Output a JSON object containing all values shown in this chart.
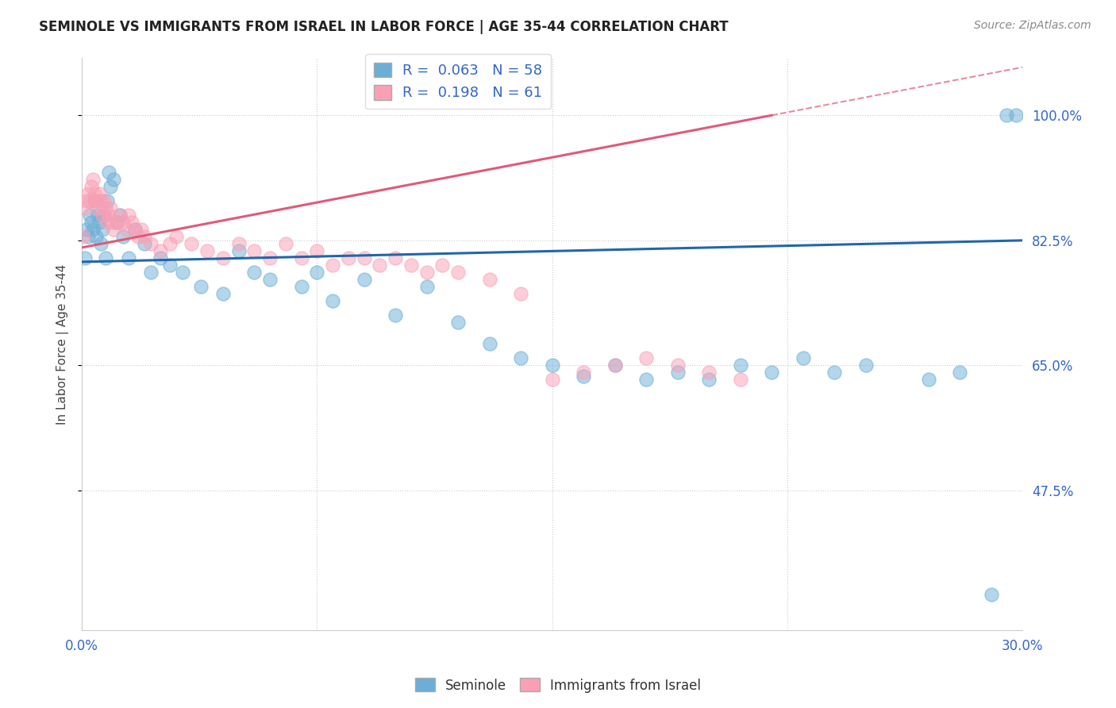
{
  "title": "SEMINOLE VS IMMIGRANTS FROM ISRAEL IN LABOR FORCE | AGE 35-44 CORRELATION CHART",
  "source": "Source: ZipAtlas.com",
  "ylabel": "In Labor Force | Age 35-44",
  "xlim": [
    0.0,
    30.0
  ],
  "ylim": [
    28.0,
    108.0
  ],
  "yticks": [
    47.5,
    65.0,
    82.5,
    100.0
  ],
  "xticks": [
    0.0,
    7.5,
    15.0,
    22.5,
    30.0
  ],
  "xtick_labels": [
    "0.0%",
    "",
    "",
    "",
    "30.0%"
  ],
  "ytick_labels": [
    "47.5%",
    "65.0%",
    "82.5%",
    "100.0%"
  ],
  "seminole_R": 0.063,
  "seminole_N": 58,
  "israel_R": 0.198,
  "israel_N": 61,
  "blue_color": "#6baed6",
  "pink_color": "#fa9fb5",
  "blue_line_color": "#2166ac",
  "pink_line_color": "#e05a78",
  "legend_label_blue": "Seminole",
  "legend_label_pink": "Immigrants from Israel",
  "seminole_x": [
    0.1,
    0.15,
    0.2,
    0.25,
    0.3,
    0.35,
    0.4,
    0.45,
    0.5,
    0.55,
    0.6,
    0.65,
    0.7,
    0.75,
    0.8,
    0.85,
    0.9,
    1.0,
    1.1,
    1.2,
    1.3,
    1.5,
    1.7,
    2.0,
    2.2,
    2.5,
    2.8,
    3.2,
    3.8,
    4.5,
    5.0,
    5.5,
    6.0,
    7.0,
    7.5,
    8.0,
    9.0,
    10.0,
    11.0,
    12.0,
    13.0,
    14.0,
    15.0,
    16.0,
    17.0,
    18.0,
    19.0,
    20.0,
    21.0,
    22.0,
    23.0,
    24.0,
    25.0,
    27.0,
    28.0,
    29.0,
    29.5,
    29.8
  ],
  "seminole_y": [
    80.0,
    84.0,
    83.0,
    86.0,
    85.0,
    84.0,
    88.0,
    83.0,
    86.0,
    85.0,
    82.0,
    84.0,
    86.0,
    80.0,
    88.0,
    92.0,
    90.0,
    91.0,
    85.0,
    86.0,
    83.0,
    80.0,
    84.0,
    82.0,
    78.0,
    80.0,
    79.0,
    78.0,
    76.0,
    75.0,
    81.0,
    78.0,
    77.0,
    76.0,
    78.0,
    74.0,
    77.0,
    72.0,
    76.0,
    71.0,
    68.0,
    66.0,
    65.0,
    63.5,
    65.0,
    63.0,
    64.0,
    63.0,
    65.0,
    64.0,
    66.0,
    64.0,
    65.0,
    63.0,
    64.0,
    33.0,
    100.0,
    100.0
  ],
  "israel_x": [
    0.05,
    0.1,
    0.15,
    0.2,
    0.25,
    0.3,
    0.35,
    0.4,
    0.45,
    0.5,
    0.55,
    0.6,
    0.65,
    0.7,
    0.75,
    0.8,
    0.85,
    0.9,
    0.95,
    1.0,
    1.1,
    1.2,
    1.3,
    1.4,
    1.5,
    1.6,
    1.7,
    1.8,
    1.9,
    2.0,
    2.2,
    2.5,
    2.8,
    3.0,
    3.5,
    4.0,
    4.5,
    5.0,
    5.5,
    6.0,
    6.5,
    7.0,
    7.5,
    8.0,
    8.5,
    9.0,
    9.5,
    10.0,
    10.5,
    11.0,
    11.5,
    12.0,
    13.0,
    14.0,
    15.0,
    16.0,
    17.0,
    18.0,
    19.0,
    20.0,
    21.0
  ],
  "israel_y": [
    83.0,
    87.0,
    88.0,
    89.0,
    88.0,
    90.0,
    91.0,
    89.0,
    88.0,
    87.0,
    89.0,
    88.0,
    86.0,
    88.0,
    87.0,
    85.0,
    86.0,
    87.0,
    85.0,
    84.0,
    85.0,
    86.0,
    85.0,
    84.0,
    86.0,
    85.0,
    84.0,
    83.0,
    84.0,
    83.0,
    82.0,
    81.0,
    82.0,
    83.0,
    82.0,
    81.0,
    80.0,
    82.0,
    81.0,
    80.0,
    82.0,
    80.0,
    81.0,
    79.0,
    80.0,
    80.0,
    79.0,
    80.0,
    79.0,
    78.0,
    79.0,
    78.0,
    77.0,
    75.0,
    63.0,
    64.0,
    65.0,
    66.0,
    65.0,
    64.0,
    63.0
  ]
}
